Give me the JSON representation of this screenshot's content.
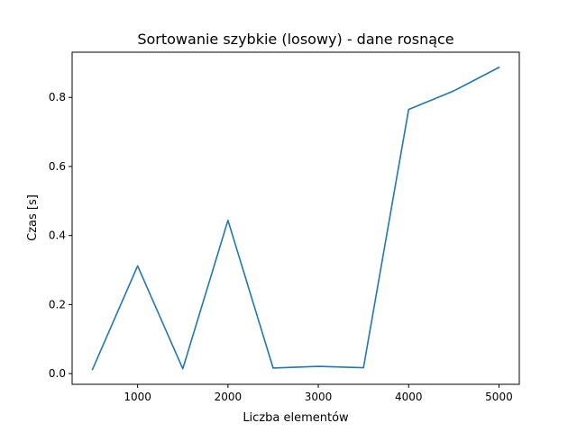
{
  "chart_data": {
    "type": "line",
    "title": "Sortowanie szybkie (losowy) - dane rosnące",
    "xlabel": "Liczba elementów",
    "ylabel": "Czas [s]",
    "xlim": [
      275,
      5225
    ],
    "ylim": [
      -0.031,
      0.931
    ],
    "x_ticks": [
      1000,
      2000,
      3000,
      4000,
      5000
    ],
    "y_ticks": [
      0.0,
      0.2,
      0.4,
      0.6,
      0.8
    ],
    "x_tick_labels": [
      "1000",
      "2000",
      "3000",
      "4000",
      "5000"
    ],
    "y_tick_labels": [
      "0.0",
      "0.2",
      "0.4",
      "0.6",
      "0.8"
    ],
    "grid": false,
    "series": [
      {
        "color": "#1f77b4",
        "x": [
          500,
          1000,
          1500,
          2000,
          2500,
          3000,
          3500,
          4000,
          4500,
          5000
        ],
        "values": [
          0.012,
          0.312,
          0.014,
          0.444,
          0.016,
          0.021,
          0.017,
          0.765,
          0.819,
          0.887
        ]
      }
    ]
  }
}
